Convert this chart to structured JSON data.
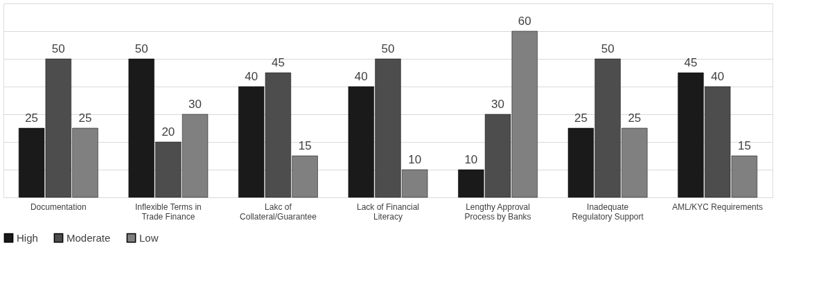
{
  "chart_data": {
    "type": "bar",
    "categories": [
      "Documentation",
      "Inflexible  Terms in Trade Finance",
      "Lakc of Collateral/Guarantee",
      "Lack of Financial Literacy",
      "Lengthy Approval Process by Banks",
      "Inadequate Regulatory Support",
      "AML/KYC Requirements"
    ],
    "series": [
      {
        "name": "High",
        "color": "#1a1a1a",
        "values": [
          25,
          50,
          40,
          40,
          10,
          25,
          45
        ]
      },
      {
        "name": "Moderate",
        "color": "#4d4d4d",
        "values": [
          50,
          20,
          45,
          50,
          30,
          50,
          40
        ]
      },
      {
        "name": "Low",
        "color": "#808080",
        "values": [
          25,
          30,
          15,
          10,
          60,
          25,
          15
        ]
      }
    ],
    "ylim": [
      0,
      70
    ],
    "yticks": [
      {
        "value": 0,
        "label": null
      },
      {
        "value": 10,
        "label": null
      },
      {
        "value": 20,
        "label": null
      },
      {
        "value": 30,
        "label": null
      },
      {
        "value": 40,
        "label": null
      },
      {
        "value": 50,
        "label": null
      },
      {
        "value": 60,
        "label": null
      },
      {
        "value": 70,
        "label": null
      }
    ],
    "tick_labels": "x",
    "grid": "y",
    "legend": "bottom",
    "data_labels": true
  }
}
